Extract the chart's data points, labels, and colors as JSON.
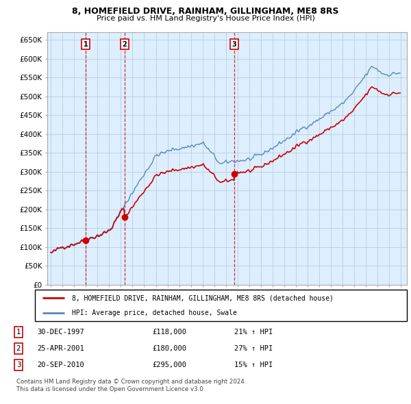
{
  "title": "8, HOMEFIELD DRIVE, RAINHAM, GILLINGHAM, ME8 8RS",
  "subtitle": "Price paid vs. HM Land Registry's House Price Index (HPI)",
  "yticks": [
    0,
    50000,
    100000,
    150000,
    200000,
    250000,
    300000,
    350000,
    400000,
    450000,
    500000,
    550000,
    600000,
    650000
  ],
  "ytick_labels": [
    "£0",
    "£50K",
    "£100K",
    "£150K",
    "£200K",
    "£250K",
    "£300K",
    "£350K",
    "£400K",
    "£450K",
    "£500K",
    "£550K",
    "£600K",
    "£650K"
  ],
  "ylim": [
    0,
    670000
  ],
  "xlim_min": 1994.7,
  "xlim_max": 2025.5,
  "sale_color": "#cc0000",
  "hpi_color": "#5588bb",
  "shade_color": "#ddeeff",
  "sale_label": "8, HOMEFIELD DRIVE, RAINHAM, GILLINGHAM, ME8 8RS (detached house)",
  "hpi_label": "HPI: Average price, detached house, Swale",
  "transactions": [
    {
      "num": 1,
      "date": "30-DEC-1997",
      "price": 118000,
      "hpi_pct": "21% ↑ HPI",
      "year": 1997.99
    },
    {
      "num": 2,
      "date": "25-APR-2001",
      "price": 180000,
      "hpi_pct": "27% ↑ HPI",
      "year": 2001.32
    },
    {
      "num": 3,
      "date": "20-SEP-2010",
      "price": 295000,
      "hpi_pct": "15% ↑ HPI",
      "year": 2010.72
    }
  ],
  "footer": "Contains HM Land Registry data © Crown copyright and database right 2024.\nThis data is licensed under the Open Government Licence v3.0.",
  "background_color": "#ffffff",
  "grid_color": "#bbccdd"
}
